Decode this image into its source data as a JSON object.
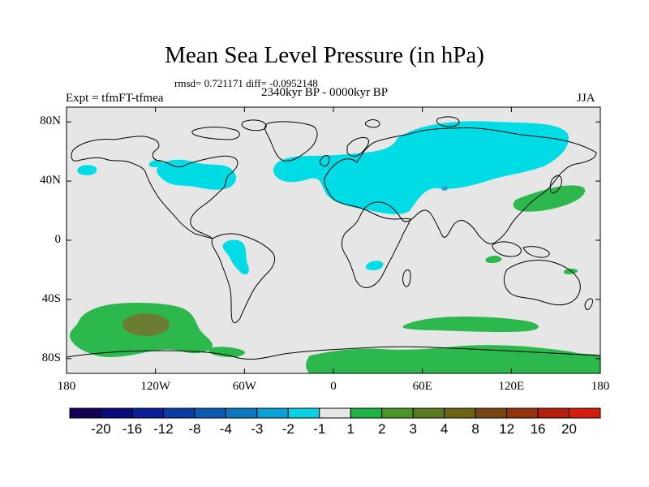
{
  "title": "Mean Sea Level Pressure (in hPa)",
  "stats": "rmsd= 0.721171 diff= -0.0952148",
  "experiment": "Expt = tfmFT-tfmea",
  "period": "2340kyr BP - 0000kyr BP",
  "season": "JJA",
  "y_axis": {
    "ticks": [
      {
        "label": "80N",
        "lat": 80
      },
      {
        "label": "40N",
        "lat": 40
      },
      {
        "label": "0",
        "lat": 0
      },
      {
        "label": "40S",
        "lat": -40
      },
      {
        "label": "80S",
        "lat": -80
      }
    ]
  },
  "x_axis": {
    "ticks": [
      {
        "label": "180",
        "lon": -180
      },
      {
        "label": "120W",
        "lon": -120
      },
      {
        "label": "60W",
        "lon": -60
      },
      {
        "label": "0",
        "lon": 0
      },
      {
        "label": "60E",
        "lon": 60
      },
      {
        "label": "120E",
        "lon": 120
      },
      {
        "label": "180",
        "lon": 180
      }
    ]
  },
  "colorbar": {
    "colors": [
      "#140056",
      "#0a0a80",
      "#0a1e9a",
      "#0a3ca8",
      "#0a5ab4",
      "#0a78c0",
      "#0aa0d8",
      "#0ad2e6",
      "#e6e6e6",
      "#1eb446",
      "#4b9628",
      "#5a7a1e",
      "#6e6414",
      "#784614",
      "#96320a",
      "#b41e0a",
      "#d21e0a"
    ],
    "labels": [
      "-20",
      "-16",
      "-12",
      "-8",
      "-4",
      "-3",
      "-2",
      "-1",
      "1",
      "2",
      "3",
      "4",
      "8",
      "12",
      "16",
      "20"
    ]
  },
  "map_colors": {
    "background": "#e6e6e6",
    "negative_1": "#00dce6",
    "negative_2": "#2aa4d6",
    "positive_1": "#2cb84c",
    "positive_2": "#6b7d33",
    "coastline": "#000000"
  }
}
